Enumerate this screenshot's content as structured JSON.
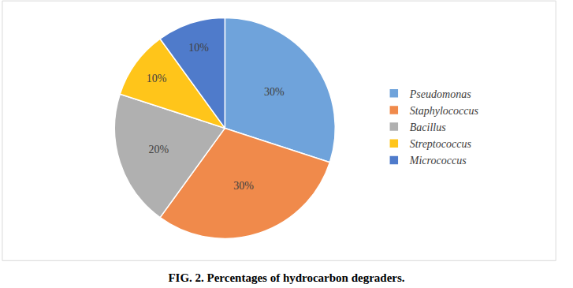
{
  "chart_data": {
    "type": "pie",
    "title": "FIG. 2. Percentages of hydrocarbon degraders.",
    "categories": [
      "Pseudomonas",
      "Staphylococcus",
      "Bacillus",
      "Streptococcus",
      "Micrococcus"
    ],
    "values": [
      30,
      30,
      20,
      10,
      10
    ],
    "value_labels": [
      "30%",
      "30%",
      "20%",
      "10%",
      "10%"
    ],
    "colors": [
      "#6fa3db",
      "#f08a4b",
      "#b0b0b0",
      "#ffc51a",
      "#4f7bcb"
    ],
    "data_labels": true,
    "legend": "right"
  }
}
